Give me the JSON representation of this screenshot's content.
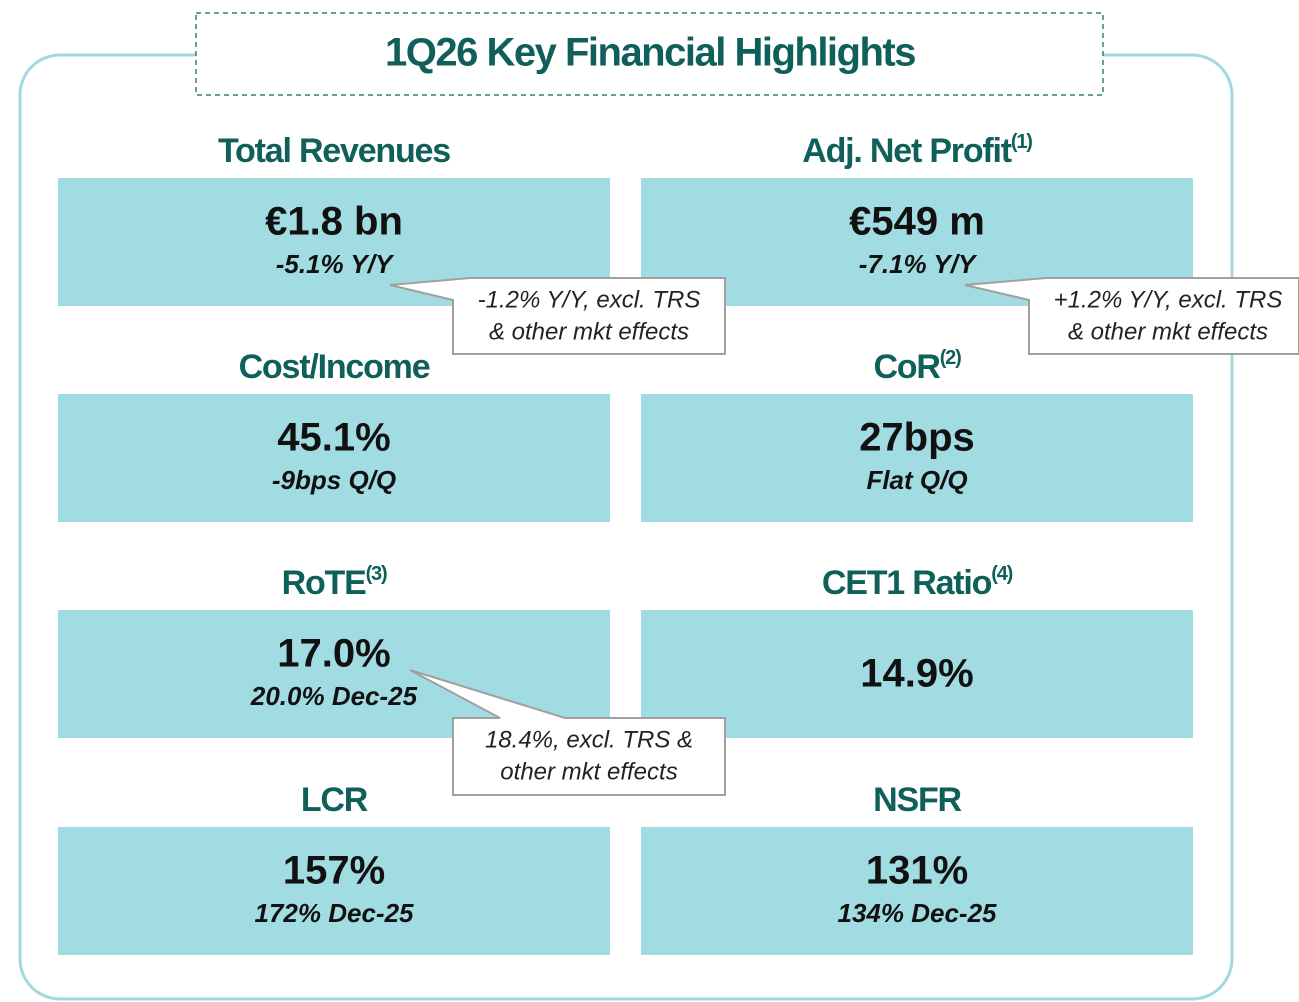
{
  "header": {
    "title": "1Q26 Key Financial Highlights"
  },
  "tiles": [
    {
      "label": "Total Revenues",
      "value": "€1.8 bn",
      "change": "-5.1% Y/Y"
    },
    {
      "label": "Adj. Net Profit",
      "sup": "(1)",
      "value": "€549 m",
      "change": "-7.1% Y/Y"
    },
    {
      "label": "Cost/Income",
      "value": "45.1%",
      "change": "-9bps Q/Q"
    },
    {
      "label": "CoR",
      "sup": "(2)",
      "value": "27bps",
      "change": "Flat Q/Q"
    },
    {
      "label": "RoTE",
      "sup": "(3)",
      "value": "17.0%",
      "change": "20.0% Dec-25"
    },
    {
      "label": "CET1 Ratio",
      "sup": "(4)",
      "value": "14.9%"
    },
    {
      "label": "LCR",
      "value": "157%",
      "change": "172% Dec-25"
    },
    {
      "label": "NSFR",
      "value": "131%",
      "change": "134% Dec-25"
    }
  ],
  "callouts": [
    {
      "lines": [
        "-1.2% Y/Y, excl. TRS",
        "& other mkt effects"
      ]
    },
    {
      "lines": [
        "+1.2% Y/Y, excl. TRS",
        "& other mkt effects"
      ]
    },
    {
      "lines": [
        "18.4%, excl. TRS &",
        "other mkt effects"
      ]
    }
  ]
}
